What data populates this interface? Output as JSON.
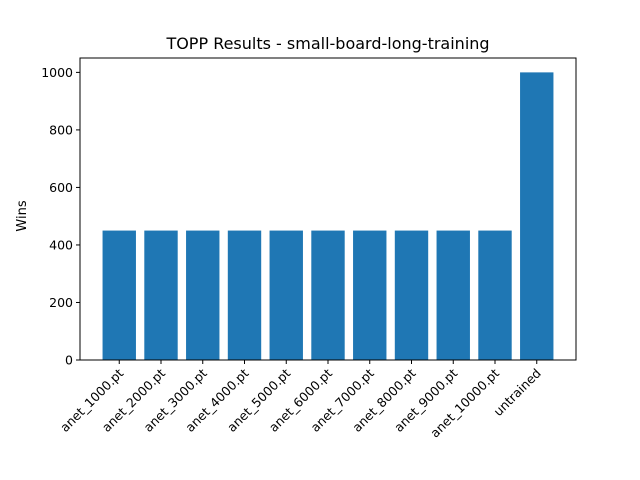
{
  "chart_data": {
    "type": "bar",
    "title": "TOPP Results - small-board-long-training",
    "xlabel": "",
    "ylabel": "Wins",
    "categories": [
      "anet_1000.pt",
      "anet_2000.pt",
      "anet_3000.pt",
      "anet_4000.pt",
      "anet_5000.pt",
      "anet_6000.pt",
      "anet_7000.pt",
      "anet_8000.pt",
      "anet_9000.pt",
      "anet_10000.pt",
      "untrained"
    ],
    "values": [
      450,
      450,
      450,
      450,
      450,
      450,
      450,
      450,
      450,
      450,
      1000
    ],
    "ylim": [
      0,
      1050
    ],
    "yticks": [
      0,
      200,
      400,
      600,
      800,
      1000
    ],
    "bar_color": "#1f77b4",
    "grid": false,
    "legend": "none"
  }
}
